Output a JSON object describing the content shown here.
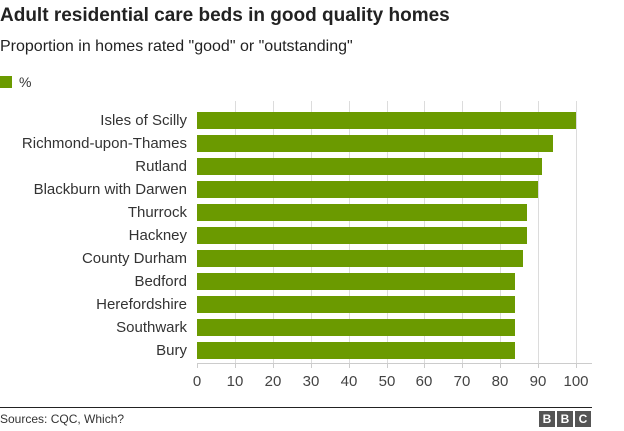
{
  "header": {
    "title": "Adult residential care beds in good quality homes",
    "subtitle": "Proportion in homes rated \"good\" or \"outstanding\""
  },
  "legend": {
    "label": "%",
    "color": "#6b9a00"
  },
  "footer": {
    "source": "Sources: CQC, Which?",
    "logo": [
      "B",
      "B",
      "C"
    ]
  },
  "colors": {
    "bar": "#6b9a00",
    "grid": "#dcdcdc",
    "text": "#222222"
  },
  "chart_data": {
    "type": "bar",
    "orientation": "horizontal",
    "title": "Adult residential care beds in good quality homes",
    "subtitle": "Proportion in homes rated \"good\" or \"outstanding\"",
    "xlabel": "",
    "ylabel": "",
    "categories": [
      "Isles of Scilly",
      "Richmond-upon-Thames",
      "Rutland",
      "Blackburn with Darwen",
      "Thurrock",
      "Hackney",
      "County Durham",
      "Bedford",
      "Herefordshire",
      "Southwark",
      "Bury"
    ],
    "series": [
      {
        "name": "%",
        "values": [
          100,
          94,
          91,
          90,
          87,
          87,
          86,
          84,
          84,
          84,
          84
        ]
      }
    ],
    "xlim": [
      0,
      100
    ],
    "xticks": [
      0,
      10,
      20,
      30,
      40,
      50,
      60,
      70,
      80,
      90,
      100
    ],
    "grid": true,
    "legend_position": "top-left",
    "source": "Sources: CQC, Which?"
  }
}
